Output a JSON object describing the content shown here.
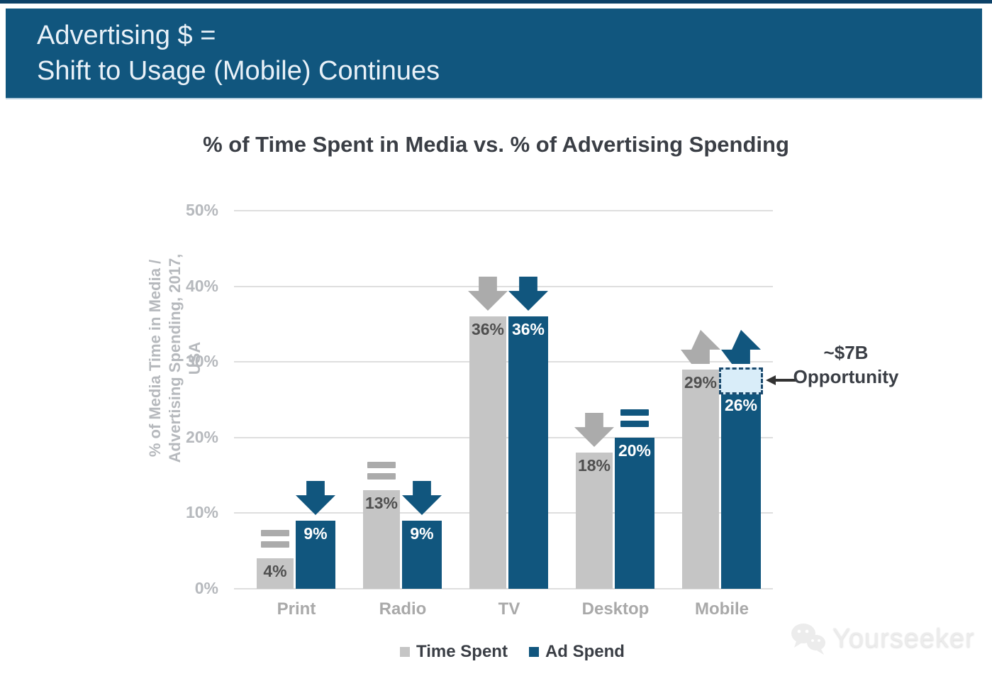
{
  "banner": {
    "line1": "Advertising $ =",
    "line2": "Shift to Usage (Mobile) Continues",
    "bg_color": "#11567e"
  },
  "chart_data": {
    "type": "bar",
    "title": "% of Time Spent in Media vs. % of Advertising Spending",
    "categories": [
      "Print",
      "Radio",
      "TV",
      "Desktop",
      "Mobile"
    ],
    "series": [
      {
        "name": "Time Spent",
        "color": "#c5c5c5",
        "label_color": "#4f4f4f",
        "indicator_color": "#ababab",
        "values": [
          4,
          13,
          36,
          18,
          29
        ],
        "trends": [
          "flat",
          "flat",
          "down",
          "down",
          "up"
        ]
      },
      {
        "name": "Ad Spend",
        "color": "#11567e",
        "label_color": "#ffffff",
        "indicator_color": "#11567e",
        "values": [
          9,
          9,
          36,
          20,
          26
        ],
        "trends": [
          "down",
          "down",
          "down",
          "flat",
          "up"
        ]
      }
    ],
    "value_label_format": "{v}%",
    "ylabel_line1": "% of Media Time in Media /",
    "ylabel_line2": "Advertising Spending, 2017, USA",
    "ylim": [
      0,
      50
    ],
    "yticks": [
      "50%",
      "40%",
      "30%",
      "20%",
      "10%",
      "0%"
    ],
    "grid": true,
    "legend_position": "bottom",
    "annotation": {
      "line1": "~$7B",
      "line2": "Opportunity",
      "target_category": "Mobile",
      "target_series": "Ad Spend",
      "gap_from": 26,
      "gap_to": 29,
      "box_fill": "#d9edf9",
      "box_border": "#1b4a6e"
    }
  },
  "watermark": {
    "text": "Yourseeker"
  }
}
